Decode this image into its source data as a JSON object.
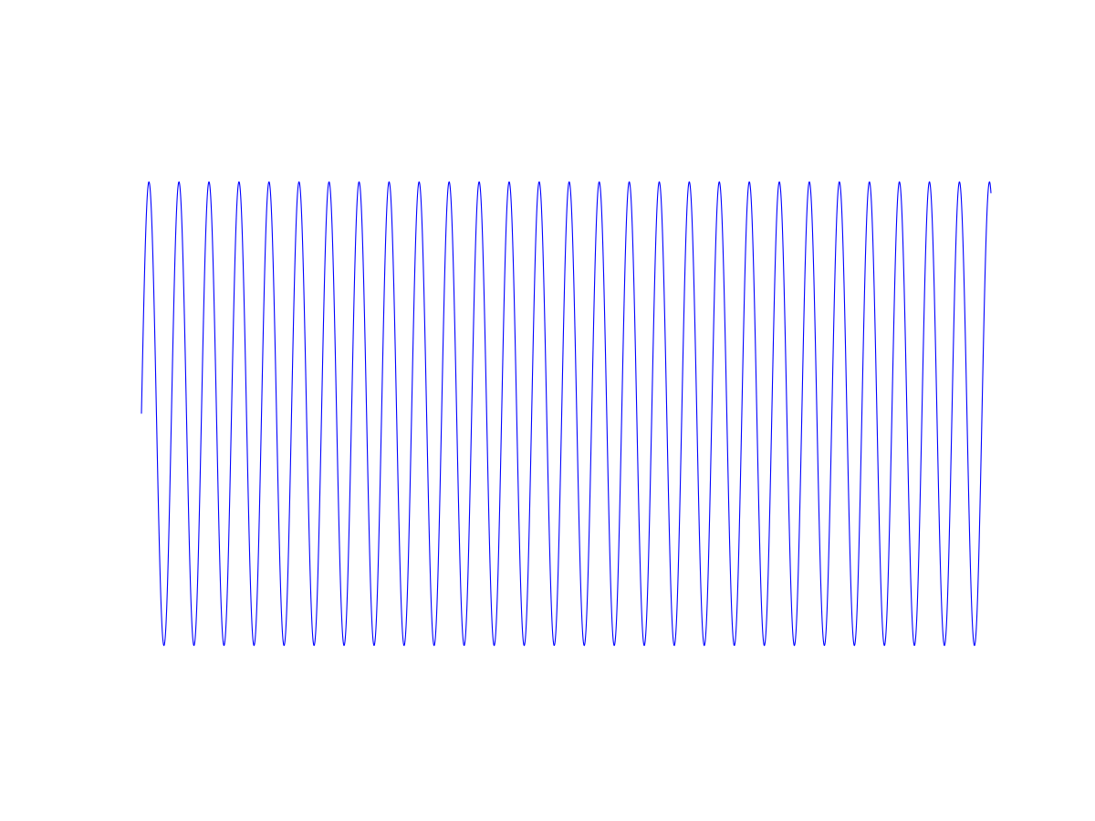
{
  "chart_data": {
    "type": "line",
    "title": "",
    "xlabel": "",
    "ylabel": "",
    "grid": false,
    "axes_visible": false,
    "legend": "none",
    "xlim": [
      0,
      28.3
    ],
    "ylim": [
      -1.1,
      1.1
    ],
    "series": [
      {
        "function": "sine",
        "amplitude": 1,
        "cycles": 28.3,
        "phase_start": 0,
        "color": "#0000ff"
      }
    ]
  }
}
